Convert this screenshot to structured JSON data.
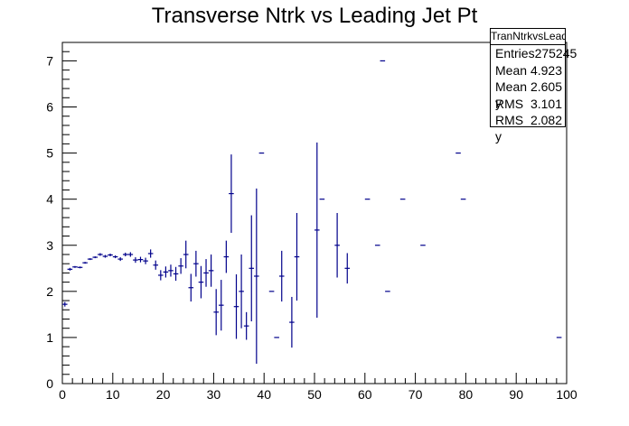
{
  "chart_data": {
    "type": "scatter",
    "title": "Transverse Ntrk vs Leading Jet Pt",
    "xlabel": "",
    "ylabel": "",
    "xlim": [
      0,
      100
    ],
    "ylim": [
      0,
      7.4
    ],
    "x_ticks": [
      "0",
      "10",
      "20",
      "30",
      "40",
      "50",
      "60",
      "70",
      "80",
      "90",
      "100"
    ],
    "y_ticks": [
      "0",
      "1",
      "2",
      "3",
      "4",
      "5",
      "6",
      "7"
    ],
    "grid": false,
    "legend": "top-right stats box",
    "series": [
      {
        "color": "#00008b",
        "points": [
          {
            "x": 0.5,
            "y": 1.72,
            "err": 0.05
          },
          {
            "x": 1.5,
            "y": 2.48,
            "err": 0.03
          },
          {
            "x": 2.5,
            "y": 2.53,
            "err": 0.02
          },
          {
            "x": 3.5,
            "y": 2.52,
            "err": 0.02
          },
          {
            "x": 4.5,
            "y": 2.62,
            "err": 0.02
          },
          {
            "x": 5.5,
            "y": 2.7,
            "err": 0.02
          },
          {
            "x": 6.5,
            "y": 2.74,
            "err": 0.02
          },
          {
            "x": 7.5,
            "y": 2.8,
            "err": 0.03
          },
          {
            "x": 8.5,
            "y": 2.76,
            "err": 0.03
          },
          {
            "x": 9.5,
            "y": 2.79,
            "err": 0.03
          },
          {
            "x": 10.5,
            "y": 2.75,
            "err": 0.03
          },
          {
            "x": 11.5,
            "y": 2.7,
            "err": 0.04
          },
          {
            "x": 12.5,
            "y": 2.8,
            "err": 0.04
          },
          {
            "x": 13.5,
            "y": 2.8,
            "err": 0.05
          },
          {
            "x": 14.5,
            "y": 2.68,
            "err": 0.06
          },
          {
            "x": 15.5,
            "y": 2.69,
            "err": 0.06
          },
          {
            "x": 16.5,
            "y": 2.66,
            "err": 0.07
          },
          {
            "x": 17.5,
            "y": 2.82,
            "err": 0.09
          },
          {
            "x": 18.5,
            "y": 2.57,
            "err": 0.1
          },
          {
            "x": 19.5,
            "y": 2.35,
            "err": 0.11
          },
          {
            "x": 20.5,
            "y": 2.42,
            "err": 0.12
          },
          {
            "x": 21.5,
            "y": 2.45,
            "err": 0.13
          },
          {
            "x": 22.5,
            "y": 2.38,
            "err": 0.15
          },
          {
            "x": 23.5,
            "y": 2.55,
            "err": 0.17
          },
          {
            "x": 24.5,
            "y": 2.8,
            "err": 0.3
          },
          {
            "x": 25.5,
            "y": 2.08,
            "err": 0.3
          },
          {
            "x": 26.5,
            "y": 2.6,
            "err": 0.28
          },
          {
            "x": 27.5,
            "y": 2.2,
            "err": 0.35
          },
          {
            "x": 28.5,
            "y": 2.4,
            "err": 0.3
          },
          {
            "x": 29.5,
            "y": 2.45,
            "err": 0.35
          },
          {
            "x": 30.5,
            "y": 1.55,
            "err": 0.5
          },
          {
            "x": 31.5,
            "y": 1.7,
            "err": 0.55
          },
          {
            "x": 32.5,
            "y": 2.75,
            "err": 0.35
          },
          {
            "x": 33.5,
            "y": 4.12,
            "err": 0.85
          },
          {
            "x": 34.5,
            "y": 1.67,
            "err": 0.7
          },
          {
            "x": 35.5,
            "y": 2.0,
            "err": 0.8
          },
          {
            "x": 36.5,
            "y": 1.25,
            "err": 0.3
          },
          {
            "x": 37.5,
            "y": 2.5,
            "err": 1.15
          },
          {
            "x": 38.5,
            "y": 2.33,
            "err": 1.9
          },
          {
            "x": 39.5,
            "y": 5.0,
            "err": 0
          },
          {
            "x": 41.5,
            "y": 2.0,
            "err": 0
          },
          {
            "x": 42.5,
            "y": 1.0,
            "err": 0
          },
          {
            "x": 43.5,
            "y": 2.33,
            "err": 0.55
          },
          {
            "x": 45.5,
            "y": 1.33,
            "err": 0.55
          },
          {
            "x": 46.5,
            "y": 2.75,
            "err": 0.95
          },
          {
            "x": 50.5,
            "y": 3.33,
            "err": 1.9
          },
          {
            "x": 51.5,
            "y": 4.0,
            "err": 0
          },
          {
            "x": 54.5,
            "y": 3.0,
            "err": 0.7
          },
          {
            "x": 56.5,
            "y": 2.5,
            "err": 0.33
          },
          {
            "x": 60.5,
            "y": 4.0,
            "err": 0
          },
          {
            "x": 62.5,
            "y": 3.0,
            "err": 0
          },
          {
            "x": 63.5,
            "y": 7.0,
            "err": 0
          },
          {
            "x": 64.5,
            "y": 2.0,
            "err": 0
          },
          {
            "x": 67.5,
            "y": 4.0,
            "err": 0
          },
          {
            "x": 71.5,
            "y": 3.0,
            "err": 0
          },
          {
            "x": 78.5,
            "y": 5.0,
            "err": 0
          },
          {
            "x": 79.5,
            "y": 4.0,
            "err": 0
          },
          {
            "x": 98.5,
            "y": 1.0,
            "err": 0
          }
        ]
      }
    ]
  },
  "stats": {
    "title": "TranNtrkvsLeadJetPt",
    "rows": [
      {
        "label": "Entries",
        "value": "275245"
      },
      {
        "label": "Mean",
        "value": "4.923"
      },
      {
        "label": "Mean y",
        "value": "2.605"
      },
      {
        "label": "RMS",
        "value": "3.101"
      },
      {
        "label": "RMS y",
        "value": "2.082"
      }
    ]
  }
}
